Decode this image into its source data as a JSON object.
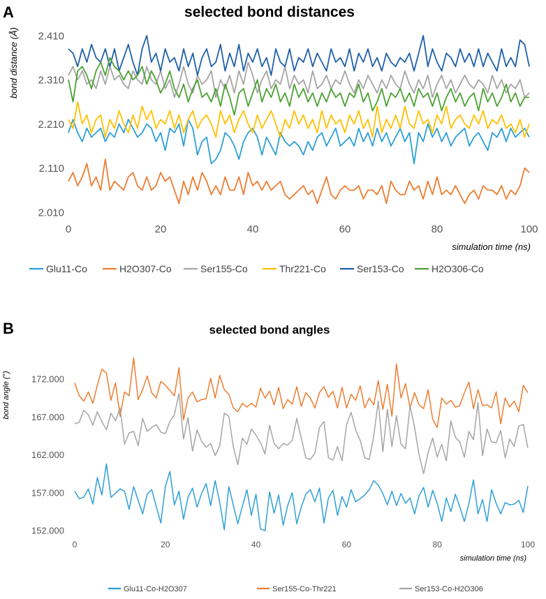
{
  "chart_data": [
    {
      "panel": "A",
      "type": "line",
      "title": "selected bond distances",
      "xlabel": "simulation time (ns)",
      "ylabel": "bond distance (Å)",
      "xlim": [
        0,
        100
      ],
      "ylim": [
        2.01,
        2.41
      ],
      "x_ticks": [
        0,
        20,
        40,
        60,
        80,
        100
      ],
      "y_ticks": [
        "2.010",
        "2.110",
        "2.210",
        "2.310",
        "2.410"
      ],
      "grid": false,
      "legend_position": "bottom",
      "x_step": 1,
      "series": [
        {
          "name": "Glu11-Co",
          "color": "#2e9fd6",
          "values": [
            2.19,
            2.22,
            2.19,
            2.17,
            2.2,
            2.18,
            2.19,
            2.2,
            2.17,
            2.19,
            2.18,
            2.21,
            2.19,
            2.22,
            2.2,
            2.18,
            2.19,
            2.21,
            2.2,
            2.17,
            2.19,
            2.15,
            2.2,
            2.19,
            2.21,
            2.16,
            2.22,
            2.2,
            2.14,
            2.17,
            2.18,
            2.12,
            2.13,
            2.15,
            2.19,
            2.18,
            2.16,
            2.13,
            2.17,
            2.19,
            2.2,
            2.18,
            2.14,
            2.18,
            2.16,
            2.14,
            2.19,
            2.17,
            2.16,
            2.17,
            2.16,
            2.14,
            2.17,
            2.15,
            2.18,
            2.19,
            2.16,
            2.18,
            2.2,
            2.16,
            2.17,
            2.18,
            2.16,
            2.2,
            2.17,
            2.19,
            2.16,
            2.2,
            2.17,
            2.19,
            2.16,
            2.18,
            2.2,
            2.17,
            2.19,
            2.12,
            2.19,
            2.17,
            2.21,
            2.18,
            2.2,
            2.17,
            2.19,
            2.16,
            2.18,
            2.19,
            2.2,
            2.16,
            2.18,
            2.19,
            2.17,
            2.15,
            2.19,
            2.18,
            2.2,
            2.17,
            2.2,
            2.18,
            2.19,
            2.2,
            2.18
          ]
        },
        {
          "name": "H2O307-Co",
          "color": "#ed7d31",
          "values": [
            2.08,
            2.1,
            2.07,
            2.09,
            2.12,
            2.07,
            2.09,
            2.06,
            2.13,
            2.06,
            2.08,
            2.07,
            2.06,
            2.09,
            2.1,
            2.07,
            2.06,
            2.09,
            2.06,
            2.07,
            2.1,
            2.08,
            2.09,
            2.06,
            2.03,
            2.08,
            2.05,
            2.09,
            2.06,
            2.1,
            2.08,
            2.05,
            2.07,
            2.05,
            2.09,
            2.06,
            2.06,
            2.09,
            2.05,
            2.1,
            2.07,
            2.08,
            2.06,
            2.08,
            2.06,
            2.07,
            2.08,
            2.05,
            2.04,
            2.05,
            2.06,
            2.07,
            2.05,
            2.06,
            2.03,
            2.06,
            2.09,
            2.05,
            2.04,
            2.06,
            2.07,
            2.06,
            2.06,
            2.07,
            2.04,
            2.06,
            2.06,
            2.05,
            2.07,
            2.03,
            2.08,
            2.06,
            2.05,
            2.05,
            2.08,
            2.06,
            2.07,
            2.04,
            2.08,
            2.05,
            2.09,
            2.05,
            2.06,
            2.05,
            2.07,
            2.05,
            2.03,
            2.05,
            2.06,
            2.04,
            2.07,
            2.06,
            2.06,
            2.05,
            2.07,
            2.04,
            2.06,
            2.05,
            2.07,
            2.11,
            2.1
          ]
        },
        {
          "name": "Ser155-Co",
          "color": "#a5a5a5",
          "values": [
            2.32,
            2.34,
            2.31,
            2.33,
            2.3,
            2.31,
            2.29,
            2.33,
            2.3,
            2.34,
            2.31,
            2.32,
            2.3,
            2.29,
            2.33,
            2.31,
            2.3,
            2.34,
            2.31,
            2.3,
            2.33,
            2.29,
            2.31,
            2.27,
            2.3,
            2.34,
            2.3,
            2.28,
            2.32,
            2.3,
            2.31,
            2.33,
            2.27,
            2.31,
            2.29,
            2.32,
            2.28,
            2.33,
            2.3,
            2.35,
            2.32,
            2.28,
            2.31,
            2.33,
            2.29,
            2.31,
            2.3,
            2.34,
            2.29,
            2.32,
            2.3,
            2.31,
            2.28,
            2.33,
            2.29,
            2.3,
            2.32,
            2.29,
            2.31,
            2.3,
            2.33,
            2.3,
            2.28,
            2.31,
            2.29,
            2.32,
            2.3,
            2.28,
            2.31,
            2.29,
            2.32,
            2.3,
            2.29,
            2.33,
            2.3,
            2.28,
            2.31,
            2.29,
            2.32,
            2.27,
            2.3,
            2.32,
            2.29,
            2.31,
            2.28,
            2.3,
            2.32,
            2.3,
            2.29,
            2.31,
            2.3,
            2.28,
            2.32,
            2.29,
            2.31,
            2.28,
            2.3,
            2.29,
            2.31,
            2.27,
            2.28
          ]
        },
        {
          "name": "Thr221-Co",
          "color": "#ffc000",
          "values": [
            2.22,
            2.2,
            2.26,
            2.21,
            2.23,
            2.19,
            2.22,
            2.23,
            2.18,
            2.22,
            2.2,
            2.24,
            2.21,
            2.19,
            2.23,
            2.2,
            2.25,
            2.22,
            2.24,
            2.2,
            2.22,
            2.21,
            2.24,
            2.2,
            2.23,
            2.19,
            2.22,
            2.24,
            2.2,
            2.22,
            2.23,
            2.21,
            2.18,
            2.24,
            2.21,
            2.23,
            2.19,
            2.22,
            2.24,
            2.21,
            2.19,
            2.23,
            2.2,
            2.22,
            2.24,
            2.21,
            2.18,
            2.22,
            2.2,
            2.24,
            2.21,
            2.23,
            2.2,
            2.22,
            2.19,
            2.24,
            2.2,
            2.23,
            2.21,
            2.22,
            2.19,
            2.23,
            2.21,
            2.24,
            2.2,
            2.22,
            2.18,
            2.25,
            2.19,
            2.22,
            2.2,
            2.23,
            2.2,
            2.25,
            2.21,
            2.2,
            2.24,
            2.21,
            2.22,
            2.19,
            2.23,
            2.21,
            2.25,
            2.2,
            2.22,
            2.23,
            2.21,
            2.2,
            2.23,
            2.21,
            2.24,
            2.2,
            2.22,
            2.21,
            2.23,
            2.2,
            2.21,
            2.19,
            2.22,
            2.18,
            2.21
          ]
        },
        {
          "name": "Ser153-Co",
          "color": "#1f5fa8",
          "values": [
            2.38,
            2.37,
            2.34,
            2.38,
            2.35,
            2.39,
            2.36,
            2.35,
            2.38,
            2.34,
            2.38,
            2.33,
            2.36,
            2.39,
            2.35,
            2.32,
            2.38,
            2.41,
            2.35,
            2.37,
            2.33,
            2.38,
            2.35,
            2.36,
            2.33,
            2.38,
            2.34,
            2.37,
            2.32,
            2.36,
            2.38,
            2.34,
            2.35,
            2.39,
            2.33,
            2.37,
            2.34,
            2.39,
            2.33,
            2.37,
            2.35,
            2.38,
            2.34,
            2.36,
            2.32,
            2.38,
            2.35,
            2.34,
            2.38,
            2.33,
            2.36,
            2.35,
            2.38,
            2.34,
            2.37,
            2.35,
            2.33,
            2.38,
            2.35,
            2.36,
            2.34,
            2.38,
            2.33,
            2.37,
            2.35,
            2.38,
            2.34,
            2.36,
            2.33,
            2.37,
            2.35,
            2.34,
            2.36,
            2.35,
            2.37,
            2.33,
            2.37,
            2.41,
            2.34,
            2.38,
            2.35,
            2.33,
            2.37,
            2.36,
            2.34,
            2.38,
            2.35,
            2.37,
            2.34,
            2.38,
            2.34,
            2.37,
            2.35,
            2.33,
            2.38,
            2.34,
            2.36,
            2.34,
            2.4,
            2.39,
            2.34
          ]
        },
        {
          "name": "H2O306-Co",
          "color": "#4ca133",
          "values": [
            2.31,
            2.26,
            2.33,
            2.34,
            2.32,
            2.29,
            2.33,
            2.35,
            2.32,
            2.36,
            2.34,
            2.33,
            2.31,
            2.33,
            2.31,
            2.32,
            2.34,
            2.3,
            2.33,
            2.31,
            2.28,
            2.3,
            2.33,
            2.29,
            2.27,
            2.3,
            2.26,
            2.29,
            2.31,
            2.27,
            2.28,
            2.26,
            2.29,
            2.25,
            2.3,
            2.27,
            2.23,
            2.28,
            2.29,
            2.25,
            2.28,
            2.31,
            2.26,
            2.29,
            2.27,
            2.3,
            2.26,
            2.28,
            2.25,
            2.3,
            2.27,
            2.29,
            2.26,
            2.28,
            2.25,
            2.28,
            2.26,
            2.29,
            2.27,
            2.28,
            2.25,
            2.28,
            2.27,
            2.3,
            2.26,
            2.28,
            2.24,
            2.26,
            2.29,
            2.25,
            2.28,
            2.27,
            2.29,
            2.26,
            2.28,
            2.25,
            2.29,
            2.27,
            2.28,
            2.25,
            2.28,
            2.24,
            2.27,
            2.29,
            2.26,
            2.28,
            2.25,
            2.27,
            2.28,
            2.24,
            2.29,
            2.26,
            2.28,
            2.25,
            2.27,
            2.3,
            2.26,
            2.28,
            2.25,
            2.27,
            2.27
          ]
        }
      ]
    },
    {
      "panel": "B",
      "type": "line",
      "title": "selected bond angles",
      "xlabel": "simulation time (ns)",
      "ylabel": "bond angle (°)",
      "xlim": [
        0,
        100
      ],
      "ylim": [
        152,
        172
      ],
      "x_ticks": [
        0,
        20,
        40,
        60,
        80,
        100
      ],
      "y_ticks": [
        "152.000",
        "157.000",
        "162.000",
        "167.000",
        "172.000"
      ],
      "grid": false,
      "legend_position": "bottom",
      "x_step": 1,
      "series": [
        {
          "name": "Glu11-Co-H2O307",
          "color": "#2e9fd6",
          "values": [
            157.2,
            156.2,
            156.4,
            157.5,
            155.5,
            159,
            156.7,
            160.8,
            156.4,
            156.9,
            157.5,
            157.2,
            154.8,
            157.8,
            156,
            154.2,
            156.8,
            157.4,
            155.2,
            153,
            157.8,
            159.8,
            155.4,
            157.2,
            153.5,
            156.4,
            157.6,
            155.1,
            156.9,
            158.2,
            155.3,
            158.6,
            155.7,
            152.1,
            157.8,
            155.4,
            152.9,
            155.2,
            157.4,
            154,
            156.8,
            152.2,
            152,
            157.1,
            154.3,
            156.7,
            152.7,
            155.3,
            157,
            152.9,
            155.1,
            156.8,
            157.4,
            155.8,
            157.6,
            153,
            156.3,
            157.3,
            154,
            156.5,
            155.1,
            157.4,
            155.8,
            156.2,
            156.7,
            157.4,
            158.6,
            158,
            156.9,
            155.4,
            157.2,
            155.3,
            156.9,
            155.6,
            156.3,
            154.2,
            156.6,
            157.7,
            155.1,
            157.3,
            155.6,
            153.2,
            156.3,
            154.5,
            156.8,
            155.1,
            153.2,
            155.6,
            158.7,
            154.2,
            156.1,
            153.2,
            157.4,
            155.6,
            154.2,
            155.7,
            155.4,
            155.5,
            156,
            154.4,
            157.9
          ]
        },
        {
          "name": "Ser155-Co-Thr221",
          "color": "#ed7d31",
          "values": [
            171.5,
            169.8,
            169.1,
            170.3,
            168.8,
            171.2,
            173.3,
            172.8,
            169.2,
            171.5,
            167.1,
            170.3,
            169.8,
            174.8,
            169.3,
            170.6,
            172.4,
            170.2,
            169.5,
            171.7,
            171.2,
            170.5,
            169.8,
            173.5,
            166.6,
            169.5,
            170.3,
            169,
            169.3,
            169.4,
            172.1,
            169.5,
            172.5,
            170.6,
            170,
            168.2,
            167.7,
            168.8,
            168.3,
            168.8,
            168.3,
            170.8,
            169.5,
            170.4,
            168.6,
            170.9,
            168.1,
            169.3,
            168.7,
            171,
            168.4,
            170.2,
            169.5,
            168.2,
            170.2,
            171,
            169.6,
            170.4,
            168.2,
            170.9,
            168.2,
            170,
            169.2,
            171.1,
            168.2,
            169.5,
            168.6,
            171.8,
            168,
            171.3,
            167.1,
            174,
            169.5,
            171.4,
            168.2,
            170.2,
            168.6,
            168.1,
            170.6,
            166.7,
            165.6,
            169.5,
            168.7,
            169.2,
            168.3,
            168.5,
            170.2,
            171.6,
            168.1,
            170.6,
            168.5,
            168.6,
            168.2,
            170.3,
            166.1,
            169.5,
            168.3,
            169.1,
            167.7,
            171.2,
            170.2
          ]
        },
        {
          "name": "Ser153-Co-H2O306",
          "color": "#a5a5a5",
          "values": [
            166.1,
            166.3,
            167.9,
            167.3,
            165.9,
            167.7,
            166.4,
            165.3,
            167.5,
            166.5,
            168.2,
            163.4,
            164.9,
            165.1,
            163.2,
            166.8,
            165.1,
            165.6,
            166,
            165,
            164.8,
            166.4,
            167.3,
            170.1,
            164.1,
            166.9,
            162.5,
            165.3,
            163.8,
            163,
            163.5,
            161.9,
            163.2,
            167.5,
            167.1,
            163.1,
            160.7,
            164.2,
            163.4,
            165.4,
            164.6,
            163.6,
            162.1,
            165.9,
            163.5,
            162.8,
            163.5,
            163.3,
            163.9,
            166.8,
            164.2,
            161.6,
            161.4,
            162.2,
            165.6,
            166.4,
            161.6,
            161.3,
            163.1,
            161.2,
            166,
            167.6,
            165.3,
            163.9,
            161.6,
            161.4,
            164.5,
            169.1,
            162.4,
            168,
            163.1,
            167.2,
            163.4,
            162.8,
            168.5,
            165.6,
            162,
            159.5,
            162.3,
            164.2,
            161.7,
            163.4,
            161.2,
            166.5,
            164.3,
            163.7,
            161.7,
            165.1,
            164,
            168.9,
            161.9,
            165.4,
            163.7,
            163.6,
            165.2,
            161.6,
            164.1,
            163.1,
            165.8,
            166,
            162.9
          ]
        }
      ]
    }
  ]
}
